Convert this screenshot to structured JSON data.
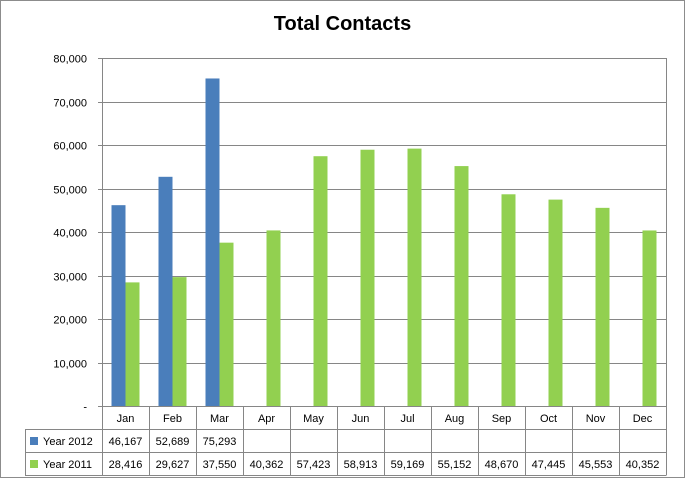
{
  "chart_data": {
    "type": "bar",
    "title": "Total Contacts",
    "xlabel": "",
    "ylabel": "",
    "ylim": [
      0,
      80000
    ],
    "yticks": [
      "-",
      "10,000",
      "20,000",
      "30,000",
      "40,000",
      "50,000",
      "60,000",
      "70,000",
      "80,000"
    ],
    "grid": true,
    "legend": "data-table",
    "categories": [
      "Jan",
      "Feb",
      "Mar",
      "Apr",
      "May",
      "Jun",
      "Jul",
      "Aug",
      "Sep",
      "Oct",
      "Nov",
      "Dec"
    ],
    "series": [
      {
        "name": "Year 2012",
        "color": "#4a7ebb",
        "values": [
          46167,
          52689,
          75293,
          null,
          null,
          null,
          null,
          null,
          null,
          null,
          null,
          null
        ],
        "labels": [
          "46,167",
          "52,689",
          "75,293",
          "",
          "",
          "",
          "",
          "",
          "",
          "",
          "",
          ""
        ]
      },
      {
        "name": "Year 2011",
        "color": "#92d050",
        "values": [
          28416,
          29627,
          37550,
          40362,
          57423,
          58913,
          59169,
          55152,
          48670,
          47445,
          45553,
          40352
        ],
        "labels": [
          "28,416",
          "29,627",
          "37,550",
          "40,362",
          "57,423",
          "58,913",
          "59,169",
          "55,152",
          "48,670",
          "47,445",
          "45,553",
          "40,352"
        ]
      }
    ]
  }
}
